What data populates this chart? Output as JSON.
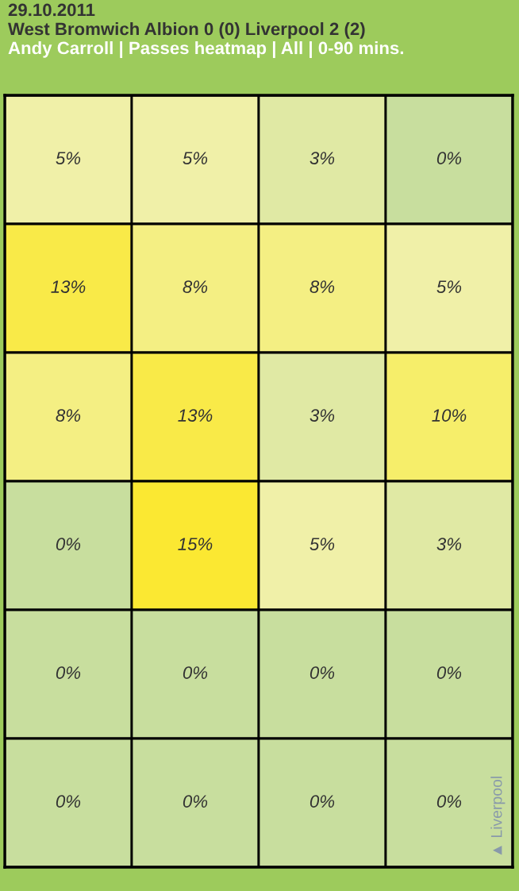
{
  "chart_data": {
    "type": "heatmap",
    "title": "29.10.2011",
    "subtitle": "West Bromwich Albion 0 (0) Liverpool 2 (2)",
    "annotations": [
      "Andy Carroll | Passes heatmap | All | 0-90 mins.",
      "▲ Liverpool"
    ],
    "categories": [
      null,
      null,
      null,
      null
    ],
    "y_categories": [
      null,
      null,
      null,
      null,
      null,
      null
    ],
    "cells": [
      [
        5,
        5,
        3,
        0
      ],
      [
        13,
        8,
        8,
        5
      ],
      [
        8,
        13,
        3,
        10
      ],
      [
        0,
        15,
        5,
        3
      ],
      [
        0,
        0,
        0,
        0
      ],
      [
        0,
        0,
        0,
        0
      ]
    ],
    "cell_labels": [
      [
        "5%",
        "5%",
        "3%",
        "0%"
      ],
      [
        "13%",
        "8%",
        "8%",
        "5%"
      ],
      [
        "8%",
        "13%",
        "3%",
        "10%"
      ],
      [
        "0%",
        "15%",
        "5%",
        "3%"
      ],
      [
        "0%",
        "0%",
        "0%",
        "0%"
      ],
      [
        "0%",
        "0%",
        "0%",
        "0%"
      ]
    ]
  }
}
